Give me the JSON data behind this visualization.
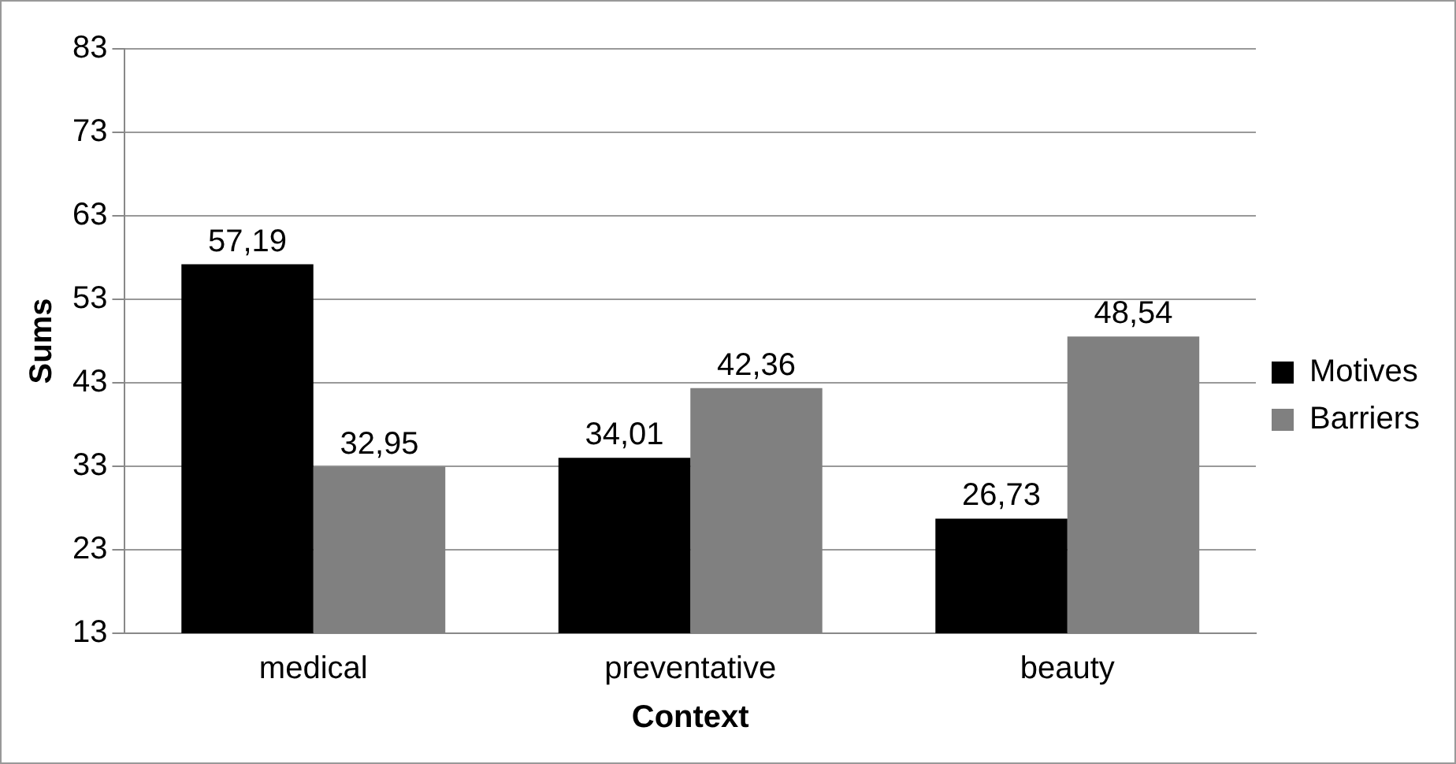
{
  "chart_data": {
    "type": "bar",
    "xlabel": "Context",
    "ylabel": "Sums",
    "categories": [
      "medical",
      "preventative",
      "beauty"
    ],
    "series": [
      {
        "name": "Motives",
        "color": "#000000",
        "values": [
          57.19,
          34.01,
          26.73
        ],
        "value_labels": [
          "57,19",
          "34,01",
          "26,73"
        ]
      },
      {
        "name": "Barriers",
        "color": "#808080",
        "values": [
          32.95,
          42.36,
          48.54
        ],
        "value_labels": [
          "32,95",
          "42,36",
          "48,54"
        ]
      }
    ],
    "ylim": [
      13,
      83
    ],
    "yticks": [
      13,
      23,
      33,
      43,
      53,
      63,
      73,
      83
    ],
    "grid": "y",
    "legend": "right"
  }
}
